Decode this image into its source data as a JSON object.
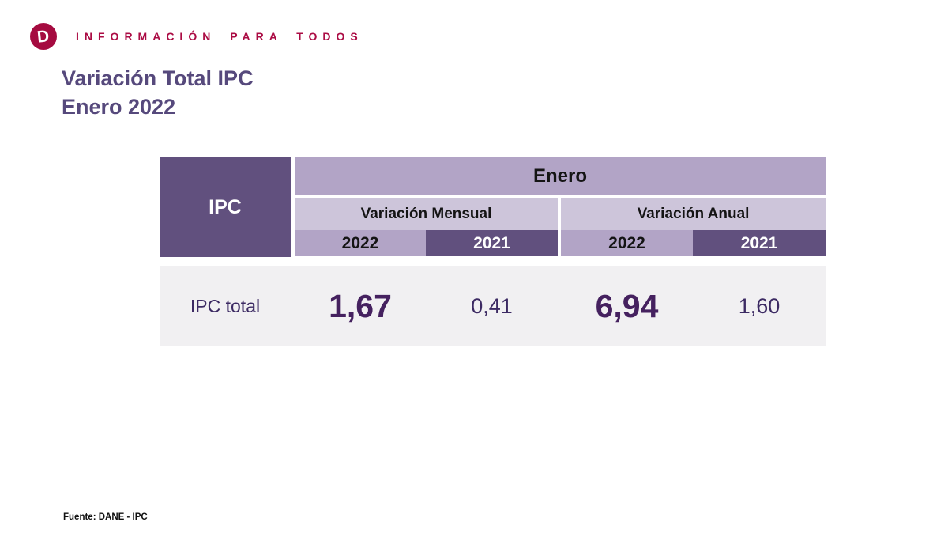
{
  "brand": {
    "logo_letter": "D",
    "tagline": "I N F O R M A C I Ó N   P A R A   T O D O S",
    "tagline_plain": "INFORMACIÓN PARA TODOS"
  },
  "title": {
    "line1": "Variación Total IPC",
    "line2": "Enero 2022"
  },
  "table": {
    "corner_label": "IPC",
    "month_header": "Enero",
    "groups": [
      {
        "label": "Variación Mensual",
        "years": [
          "2022",
          "2021"
        ]
      },
      {
        "label": "Variación Anual",
        "years": [
          "2022",
          "2021"
        ]
      }
    ],
    "row": {
      "label": "IPC total",
      "values": [
        "1,67",
        "0,41",
        "6,94",
        "1,60"
      ]
    }
  },
  "footer": {
    "source": "Fuente: DANE - IPC"
  },
  "colors": {
    "accent_crimson": "#a50b40",
    "dark_purple": "#61507e",
    "medium_lavender": "#b2a4c6",
    "light_lavender": "#cdc5da",
    "row_gray": "#f1f0f2",
    "title_purple": "#56497c",
    "value_purple": "#45215f"
  },
  "chart_data": {
    "type": "table",
    "title": "Variación Total IPC Enero 2022",
    "columns": [
      "Variación Mensual 2022",
      "Variación Mensual 2021",
      "Variación Anual 2022",
      "Variación Anual 2021"
    ],
    "rows": [
      {
        "label": "IPC total",
        "values": [
          1.67,
          0.41,
          6.94,
          1.6
        ]
      }
    ]
  }
}
